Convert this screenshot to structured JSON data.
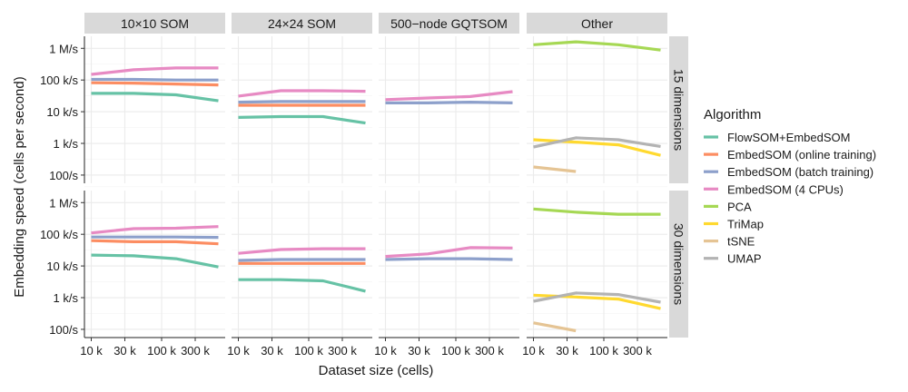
{
  "chart_data": {
    "type": "line",
    "xlabel": "Dataset size (cells)",
    "ylabel": "Embedding speed (cells per second)",
    "x_scale": "log10",
    "y_scale": "log10",
    "x_ticks": [
      {
        "value": 10000,
        "label": "10 k"
      },
      {
        "value": 30000,
        "label": "30 k"
      },
      {
        "value": 100000,
        "label": "100 k"
      },
      {
        "value": 300000,
        "label": "300 k"
      }
    ],
    "y_ticks": [
      {
        "value": 1000000,
        "label": "1 M/s"
      },
      {
        "value": 100000,
        "label": "100 k/s"
      },
      {
        "value": 10000,
        "label": "10 k/s"
      },
      {
        "value": 1000,
        "label": "1 k/s"
      },
      {
        "value": 100,
        "label": "100/s"
      }
    ],
    "ylim": [
      55,
      2400000
    ],
    "xlim": [
      8000,
      800000
    ],
    "grid": true,
    "legend_title": "Algorithm",
    "legend_position": "right",
    "series_styles": [
      {
        "name": "FlowSOM+EmbedSOM",
        "color": "#66C2A5"
      },
      {
        "name": "EmbedSOM (online training)",
        "color": "#FC8D62"
      },
      {
        "name": "EmbedSOM (batch training)",
        "color": "#8DA0CB"
      },
      {
        "name": "EmbedSOM (4 CPUs)",
        "color": "#E78AC3"
      },
      {
        "name": "PCA",
        "color": "#A6D854"
      },
      {
        "name": "TriMap",
        "color": "#FFD92F"
      },
      {
        "name": "tSNE",
        "color": "#E5C494"
      },
      {
        "name": "UMAP",
        "color": "#B3B3B3"
      }
    ],
    "facet_columns": [
      "10×10 SOM",
      "24×24 SOM",
      "500−node GQTSOM",
      "Other"
    ],
    "facet_rows": [
      "15 dimensions",
      "30 dimensions"
    ],
    "x": [
      10000,
      40000,
      160000,
      640000
    ],
    "panels": [
      {
        "column": 0,
        "row": 0,
        "series": [
          {
            "name": "FlowSOM+EmbedSOM",
            "values": [
              38000,
              38000,
              34000,
              22000
            ]
          },
          {
            "name": "EmbedSOM (online training)",
            "values": [
              82000,
              80000,
              75000,
              70000
            ]
          },
          {
            "name": "EmbedSOM (batch training)",
            "values": [
              105000,
              105000,
              100000,
              100000
            ]
          },
          {
            "name": "EmbedSOM (4 CPUs)",
            "values": [
              150000,
              210000,
              240000,
              240000
            ]
          }
        ]
      },
      {
        "column": 1,
        "row": 0,
        "series": [
          {
            "name": "FlowSOM+EmbedSOM",
            "values": [
              6600,
              7000,
              7000,
              4400
            ]
          },
          {
            "name": "EmbedSOM (online training)",
            "values": [
              16000,
              16000,
              16000,
              16000
            ]
          },
          {
            "name": "EmbedSOM (batch training)",
            "values": [
              20000,
              21000,
              21000,
              21000
            ]
          },
          {
            "name": "EmbedSOM (4 CPUs)",
            "values": [
              31000,
              46000,
              46000,
              44000
            ]
          }
        ]
      },
      {
        "column": 2,
        "row": 0,
        "series": [
          {
            "name": "EmbedSOM (batch training)",
            "values": [
              19000,
              19000,
              20000,
              19000
            ]
          },
          {
            "name": "EmbedSOM (4 CPUs)",
            "values": [
              24000,
              27000,
              30000,
              43000
            ]
          }
        ]
      },
      {
        "column": 3,
        "row": 0,
        "series": [
          {
            "name": "PCA",
            "values": [
              1300000,
              1600000,
              1300000,
              880000
            ]
          },
          {
            "name": "TriMap",
            "values": [
              1300,
              1100,
              900,
              420
            ]
          },
          {
            "name": "tSNE",
            "values": [
              180,
              130,
              null,
              null
            ]
          },
          {
            "name": "UMAP",
            "values": [
              770,
              1500,
              1300,
              800
            ]
          }
        ]
      },
      {
        "column": 0,
        "row": 1,
        "series": [
          {
            "name": "FlowSOM+EmbedSOM",
            "values": [
              22000,
              21000,
              17000,
              9300
            ]
          },
          {
            "name": "EmbedSOM (online training)",
            "values": [
              63000,
              58000,
              58000,
              50000
            ]
          },
          {
            "name": "EmbedSOM (batch training)",
            "values": [
              82000,
              82000,
              82000,
              80000
            ]
          },
          {
            "name": "EmbedSOM (4 CPUs)",
            "values": [
              110000,
              150000,
              155000,
              175000
            ]
          }
        ]
      },
      {
        "column": 1,
        "row": 1,
        "series": [
          {
            "name": "FlowSOM+EmbedSOM",
            "values": [
              3700,
              3700,
              3400,
              1600
            ]
          },
          {
            "name": "EmbedSOM (online training)",
            "values": [
              12000,
              12000,
              12000,
              12000
            ]
          },
          {
            "name": "EmbedSOM (batch training)",
            "values": [
              15000,
              16000,
              16000,
              16000
            ]
          },
          {
            "name": "EmbedSOM (4 CPUs)",
            "values": [
              25000,
              33000,
              35000,
              35000
            ]
          }
        ]
      },
      {
        "column": 2,
        "row": 1,
        "series": [
          {
            "name": "EmbedSOM (batch training)",
            "values": [
              16000,
              17000,
              17000,
              16000
            ]
          },
          {
            "name": "EmbedSOM (4 CPUs)",
            "values": [
              20000,
              24000,
              38000,
              37000
            ]
          }
        ]
      },
      {
        "column": 3,
        "row": 1,
        "series": [
          {
            "name": "PCA",
            "values": [
              630000,
              500000,
              430000,
              430000
            ]
          },
          {
            "name": "TriMap",
            "values": [
              1200,
              1050,
              900,
              450
            ]
          },
          {
            "name": "tSNE",
            "values": [
              160,
              90,
              null,
              null
            ]
          },
          {
            "name": "UMAP",
            "values": [
              770,
              1400,
              1250,
              720
            ]
          }
        ]
      }
    ]
  }
}
